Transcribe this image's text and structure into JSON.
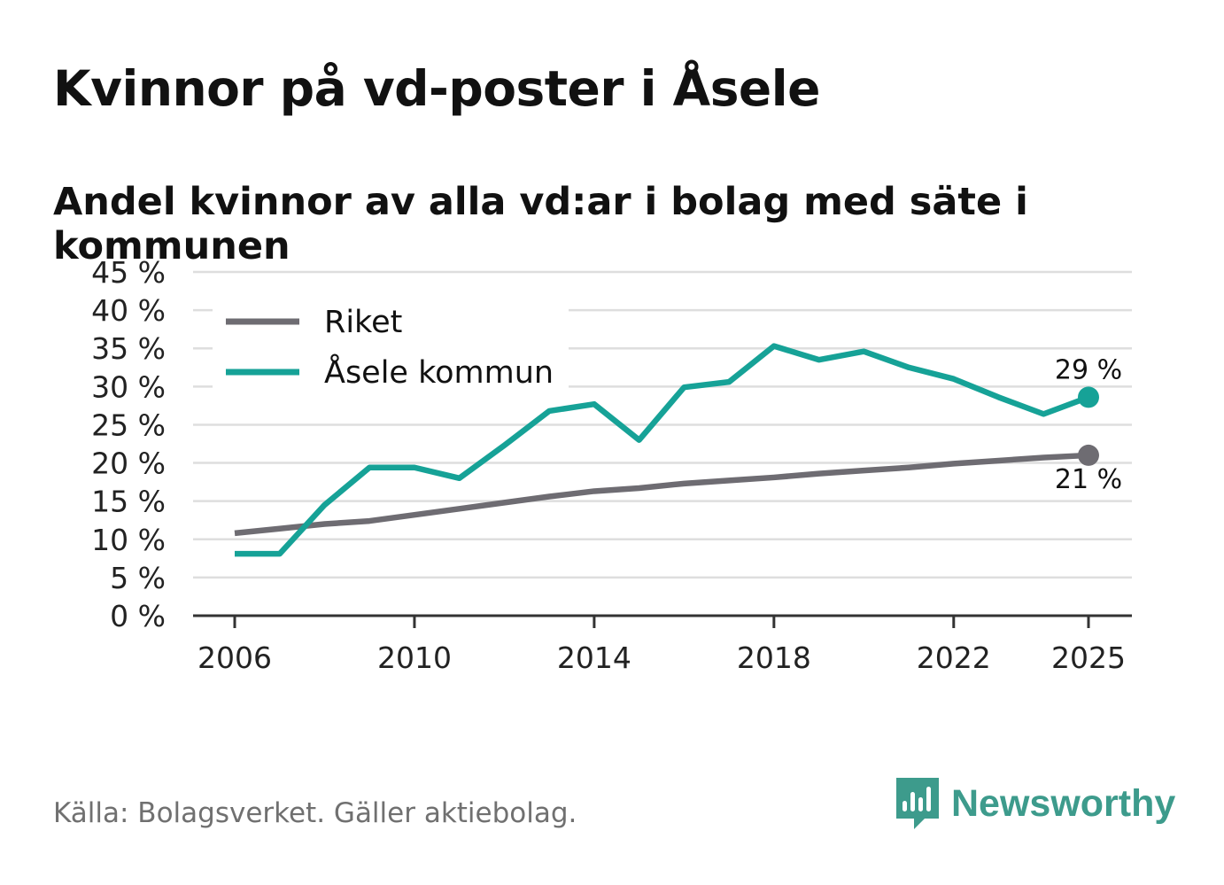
{
  "title": "Kvinnor på vd-poster i Åsele",
  "subtitle": "Andel kvinnor av alla vd:ar i bolag med säte i kommunen",
  "source": "Källa: Bolagsverket. Gäller aktiebolag.",
  "brand": {
    "name": "Newsworthy",
    "icon": "newsworthy-logo-icon",
    "color": "#3d9b8c"
  },
  "chart_data": {
    "type": "line",
    "title": "Kvinnor på vd-poster i Åsele",
    "subtitle": "Andel kvinnor av alla vd:ar i bolag med säte i kommunen",
    "xlabel": "",
    "ylabel": "",
    "ylim": [
      0,
      45
    ],
    "xlim": [
      2006,
      2025
    ],
    "yticks": [
      0,
      5,
      10,
      15,
      20,
      25,
      30,
      35,
      40,
      45
    ],
    "ytick_labels": [
      "0 %",
      "5 %",
      "10 %",
      "15 %",
      "20 %",
      "25 %",
      "30 %",
      "35 %",
      "40 %",
      "45 %"
    ],
    "xticks": [
      2006,
      2010,
      2014,
      2018,
      2022,
      2025
    ],
    "xtick_labels": [
      "2006",
      "2010",
      "2014",
      "2018",
      "2022",
      "2025"
    ],
    "grid": true,
    "legend_position": "top-left",
    "x": [
      2006,
      2007,
      2008,
      2009,
      2010,
      2011,
      2012,
      2013,
      2014,
      2015,
      2016,
      2017,
      2018,
      2019,
      2020,
      2021,
      2022,
      2023,
      2024,
      2025
    ],
    "series": [
      {
        "name": "Riket",
        "color": "#6e6c72",
        "values": [
          10.8,
          11.4,
          12.0,
          12.4,
          13.2,
          14.0,
          14.8,
          15.6,
          16.3,
          16.7,
          17.3,
          17.7,
          18.1,
          18.6,
          19.0,
          19.4,
          19.9,
          20.3,
          20.7,
          21.0
        ],
        "end_label": "21 %"
      },
      {
        "name": "Åsele kommun",
        "color": "#16a297",
        "values": [
          8.1,
          8.1,
          14.5,
          19.4,
          19.4,
          18.0,
          22.3,
          26.8,
          27.7,
          23.0,
          29.9,
          30.6,
          35.3,
          33.5,
          34.6,
          32.5,
          31.0,
          28.6,
          26.4,
          28.6
        ],
        "end_label": "29 %"
      }
    ]
  }
}
